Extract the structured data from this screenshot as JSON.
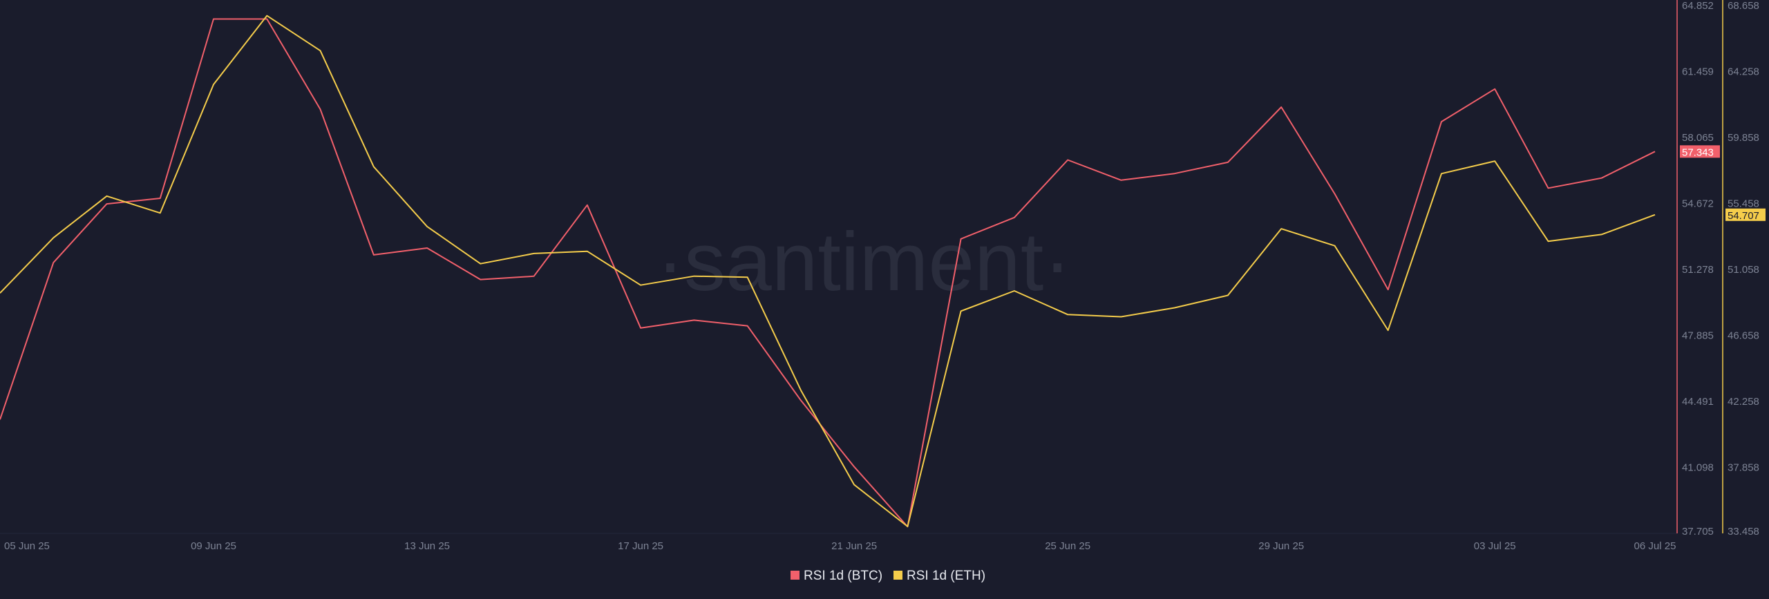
{
  "watermark": "·santiment·",
  "chart_data": {
    "type": "line",
    "title": "",
    "x": [
      "05 Jun 25",
      "06 Jun 25",
      "07 Jun 25",
      "08 Jun 25",
      "09 Jun 25",
      "10 Jun 25",
      "11 Jun 25",
      "12 Jun 25",
      "13 Jun 25",
      "14 Jun 25",
      "15 Jun 25",
      "16 Jun 25",
      "17 Jun 25",
      "18 Jun 25",
      "19 Jun 25",
      "20 Jun 25",
      "21 Jun 25",
      "22 Jun 25",
      "23 Jun 25",
      "24 Jun 25",
      "25 Jun 25",
      "26 Jun 25",
      "27 Jun 25",
      "28 Jun 25",
      "29 Jun 25",
      "30 Jun 25",
      "01 Jul 25",
      "02 Jul 25",
      "03 Jul 25",
      "04 Jul 25",
      "05 Jul 25",
      "06 Jul 25"
    ],
    "x_tick_labels": [
      "05 Jun 25",
      "09 Jun 25",
      "13 Jun 25",
      "17 Jun 25",
      "21 Jun 25",
      "25 Jun 25",
      "29 Jun 25",
      "03 Jul 25",
      "06 Jul 25"
    ],
    "x_tick_index": [
      0,
      4,
      8,
      12,
      16,
      20,
      24,
      28,
      31
    ],
    "series": [
      {
        "name": "RSI 1d (BTC)",
        "color": "#f2606b",
        "axis": "left",
        "last_label": "57.343",
        "values": [
          43.56,
          51.63,
          54.65,
          54.94,
          64.16,
          64.16,
          59.52,
          52.03,
          52.38,
          50.76,
          50.93,
          54.59,
          48.27,
          48.67,
          48.38,
          44.55,
          41.13,
          38.05,
          52.85,
          53.95,
          56.91,
          55.87,
          56.21,
          56.79,
          59.63,
          55.17,
          50.24,
          58.88,
          60.56,
          55.46,
          55.98,
          57.343
        ]
      },
      {
        "name": "RSI 1d (ETH)",
        "color": "#f5cd4b",
        "axis": "right",
        "last_label": "54.707",
        "values": [
          49.48,
          53.17,
          55.95,
          54.82,
          63.39,
          67.98,
          65.65,
          57.91,
          53.92,
          51.44,
          52.12,
          52.27,
          50.01,
          50.61,
          50.54,
          43.01,
          36.7,
          33.92,
          48.28,
          49.63,
          48.05,
          47.9,
          48.5,
          49.33,
          53.77,
          52.64,
          47.0,
          57.45,
          58.28,
          52.94,
          53.39,
          54.707
        ]
      }
    ],
    "axes": {
      "left": {
        "range": [
          37.705,
          64.852
        ],
        "ticks": [
          "64.852",
          "61.459",
          "58.065",
          "54.672",
          "51.278",
          "47.885",
          "44.491",
          "41.098",
          "37.705"
        ]
      },
      "right": {
        "range": [
          33.458,
          68.658
        ],
        "ticks": [
          "68.658",
          "64.258",
          "59.858",
          "55.458",
          "51.058",
          "46.658",
          "42.258",
          "37.858",
          "33.458"
        ]
      }
    },
    "grid": false,
    "legend_placement": "bottom-center"
  }
}
